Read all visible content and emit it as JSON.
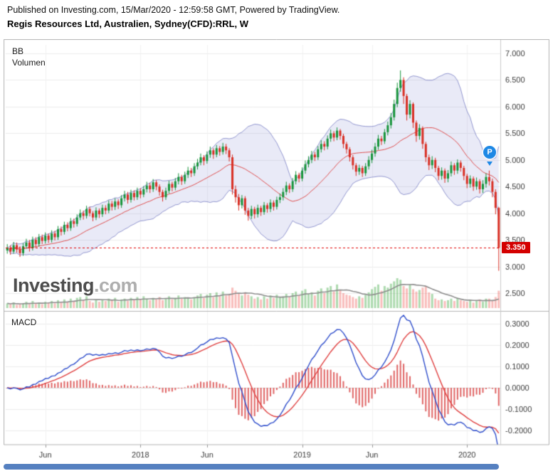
{
  "header": {
    "published_line": "Published on Investing.com, 15/Mar/2020 - 12:59:58 GMT, Powered by TradingView.",
    "title": "Regis Resources Ltd, Australien, Sydney(CFD):RRL, W"
  },
  "price_pane": {
    "indicator_labels": {
      "bb": "BB",
      "volume": "Volumen"
    },
    "watermark": {
      "name": "Investing",
      "suffix": ".com"
    },
    "last_price_tag": "3.350",
    "event_marker": "P"
  },
  "macd_pane": {
    "label": "MACD"
  },
  "axes": {
    "price_ticks": [
      {
        "v": 7.0,
        "label": "7.000"
      },
      {
        "v": 6.5,
        "label": "6.500"
      },
      {
        "v": 6.0,
        "label": "6.000"
      },
      {
        "v": 5.5,
        "label": "5.500"
      },
      {
        "v": 5.0,
        "label": "5.000"
      },
      {
        "v": 4.5,
        "label": "4.500"
      },
      {
        "v": 4.0,
        "label": "4.000"
      },
      {
        "v": 3.5,
        "label": "3.500"
      },
      {
        "v": 3.0,
        "label": "3.000"
      },
      {
        "v": 2.5,
        "label": "2.500"
      }
    ],
    "macd_ticks": [
      {
        "v": 0.3,
        "label": "0.3000"
      },
      {
        "v": 0.2,
        "label": "0.2000"
      },
      {
        "v": 0.1,
        "label": "0.1000"
      },
      {
        "v": 0.0,
        "label": "0.0000"
      },
      {
        "v": -0.1,
        "label": "-0.1000"
      },
      {
        "v": -0.2,
        "label": "-0.2000"
      }
    ],
    "time_ticks": [
      {
        "label": "Jun",
        "i": 12
      },
      {
        "label": "2018",
        "i": 42
      },
      {
        "label": "Jun",
        "i": 63
      },
      {
        "label": "2019",
        "i": 93
      },
      {
        "label": "Jun",
        "i": 115
      },
      {
        "label": "2020",
        "i": 145
      }
    ]
  },
  "colors": {
    "up": "#18953c",
    "down": "#d93025",
    "vol_up": "rgba(76,175,80,0.45)",
    "vol_down": "rgba(239,83,80,0.38)",
    "vol_ma": "#8d8d8d",
    "bb_fill": "rgba(98,103,196,0.14)",
    "bb_edge": "rgba(84,90,180,0.6)",
    "bb_mid": "#e05151",
    "macd_line": "#2f4ecc",
    "macd_signal": "#e04040",
    "macd_hist": "#e06666",
    "last_price_line": "#e00000",
    "tag_bg": "#d40000",
    "grid": "#ededed",
    "grid_zero": "#d9d9d9",
    "border": "#b3b3b3",
    "axis_text": "#3c3c3c",
    "marker": "#1e88e5",
    "scrollbar": "#5580c0"
  },
  "chart_data": [
    {
      "id": "price",
      "type": "candlestick",
      "title": "RRL weekly candles with Bollinger Bands and volume",
      "x_unit": "week",
      "ylim": [
        2.17,
        7.17
      ],
      "yticks": [
        7.0,
        6.5,
        6.0,
        5.5,
        5.0,
        4.5,
        4.0,
        3.5,
        3.0,
        2.5
      ],
      "grid": true,
      "legend": "none",
      "last_price": 3.35,
      "bollinger": {
        "period": 20,
        "mult": 2
      },
      "volume_ma_period": 10,
      "candles": [
        [
          3.3,
          3.42,
          3.24,
          3.35
        ],
        [
          3.35,
          3.4,
          3.22,
          3.28
        ],
        [
          3.28,
          3.46,
          3.24,
          3.4
        ],
        [
          3.4,
          3.45,
          3.26,
          3.32
        ],
        [
          3.32,
          3.38,
          3.18,
          3.25
        ],
        [
          3.25,
          3.44,
          3.2,
          3.38
        ],
        [
          3.38,
          3.52,
          3.33,
          3.45
        ],
        [
          3.45,
          3.5,
          3.28,
          3.35
        ],
        [
          3.35,
          3.56,
          3.3,
          3.5
        ],
        [
          3.5,
          3.55,
          3.36,
          3.42
        ],
        [
          3.42,
          3.61,
          3.37,
          3.55
        ],
        [
          3.55,
          3.6,
          3.42,
          3.48
        ],
        [
          3.48,
          3.64,
          3.43,
          3.58
        ],
        [
          3.58,
          3.62,
          3.44,
          3.5
        ],
        [
          3.5,
          3.68,
          3.45,
          3.62
        ],
        [
          3.62,
          3.67,
          3.49,
          3.55
        ],
        [
          3.55,
          3.76,
          3.5,
          3.7
        ],
        [
          3.7,
          3.75,
          3.58,
          3.65
        ],
        [
          3.65,
          3.84,
          3.6,
          3.78
        ],
        [
          3.78,
          3.83,
          3.66,
          3.72
        ],
        [
          3.72,
          3.91,
          3.67,
          3.85
        ],
        [
          3.85,
          3.9,
          3.73,
          3.8
        ],
        [
          3.8,
          3.98,
          3.75,
          3.92
        ],
        [
          3.92,
          4.07,
          3.87,
          4.0
        ],
        [
          4.0,
          4.05,
          3.88,
          3.95
        ],
        [
          3.95,
          4.14,
          3.9,
          4.08
        ],
        [
          4.08,
          4.12,
          3.94,
          4.0
        ],
        [
          4.0,
          4.04,
          3.85,
          3.92
        ],
        [
          3.92,
          4.11,
          3.87,
          4.05
        ],
        [
          4.05,
          4.09,
          3.91,
          3.98
        ],
        [
          3.98,
          4.16,
          3.93,
          4.1
        ],
        [
          4.1,
          4.15,
          3.98,
          4.05
        ],
        [
          4.05,
          4.24,
          4.0,
          4.18
        ],
        [
          4.18,
          4.23,
          4.05,
          4.12
        ],
        [
          4.12,
          4.28,
          4.06,
          4.22
        ],
        [
          4.22,
          4.26,
          4.08,
          4.15
        ],
        [
          4.15,
          4.34,
          4.1,
          4.28
        ],
        [
          4.28,
          4.42,
          4.22,
          4.35
        ],
        [
          4.35,
          4.4,
          4.18,
          4.25
        ],
        [
          4.25,
          4.44,
          4.2,
          4.38
        ],
        [
          4.38,
          4.43,
          4.24,
          4.3
        ],
        [
          4.3,
          4.48,
          4.25,
          4.42
        ],
        [
          4.42,
          4.47,
          4.28,
          4.35
        ],
        [
          4.35,
          4.51,
          4.3,
          4.45
        ],
        [
          4.45,
          4.59,
          4.39,
          4.52
        ],
        [
          4.52,
          4.57,
          4.38,
          4.45
        ],
        [
          4.45,
          4.64,
          4.4,
          4.58
        ],
        [
          4.58,
          4.62,
          4.43,
          4.5
        ],
        [
          4.5,
          4.54,
          4.33,
          4.4
        ],
        [
          4.4,
          4.44,
          4.22,
          4.3
        ],
        [
          4.3,
          4.48,
          4.25,
          4.42
        ],
        [
          4.42,
          4.61,
          4.37,
          4.55
        ],
        [
          4.55,
          4.59,
          4.41,
          4.48
        ],
        [
          4.48,
          4.66,
          4.43,
          4.6
        ],
        [
          4.6,
          4.75,
          4.54,
          4.68
        ],
        [
          4.68,
          4.72,
          4.53,
          4.6
        ],
        [
          4.6,
          4.78,
          4.55,
          4.72
        ],
        [
          4.72,
          4.87,
          4.66,
          4.8
        ],
        [
          4.8,
          4.85,
          4.68,
          4.75
        ],
        [
          4.75,
          4.94,
          4.7,
          4.88
        ],
        [
          4.88,
          5.02,
          4.82,
          4.95
        ],
        [
          4.95,
          5.12,
          4.9,
          5.05
        ],
        [
          5.05,
          5.09,
          4.9,
          4.98
        ],
        [
          4.98,
          5.16,
          4.93,
          5.1
        ],
        [
          5.1,
          5.25,
          5.04,
          5.18
        ],
        [
          5.18,
          5.22,
          5.02,
          5.1
        ],
        [
          5.1,
          5.28,
          5.05,
          5.22
        ],
        [
          5.22,
          5.26,
          5.08,
          5.15
        ],
        [
          5.15,
          5.32,
          5.1,
          5.25
        ],
        [
          5.25,
          5.3,
          5.11,
          5.18
        ],
        [
          5.18,
          5.22,
          4.97,
          5.05
        ],
        [
          5.05,
          5.1,
          4.35,
          4.45
        ],
        [
          4.45,
          4.52,
          4.2,
          4.3
        ],
        [
          4.3,
          4.36,
          4.05,
          4.15
        ],
        [
          4.15,
          4.34,
          4.09,
          4.28
        ],
        [
          4.28,
          4.32,
          3.97,
          4.05
        ],
        [
          4.05,
          4.1,
          3.86,
          3.95
        ],
        [
          3.95,
          4.14,
          3.89,
          4.08
        ],
        [
          4.08,
          4.12,
          3.9,
          3.98
        ],
        [
          3.98,
          4.16,
          3.92,
          4.1
        ],
        [
          4.1,
          4.14,
          3.95,
          4.02
        ],
        [
          4.02,
          4.21,
          3.97,
          4.15
        ],
        [
          4.15,
          4.19,
          4.01,
          4.08
        ],
        [
          4.08,
          4.26,
          4.02,
          4.2
        ],
        [
          4.2,
          4.24,
          4.05,
          4.12
        ],
        [
          4.12,
          4.31,
          4.07,
          4.25
        ],
        [
          4.25,
          4.37,
          4.19,
          4.3
        ],
        [
          4.3,
          4.47,
          4.24,
          4.4
        ],
        [
          4.4,
          4.59,
          4.34,
          4.52
        ],
        [
          4.52,
          4.56,
          4.38,
          4.45
        ],
        [
          4.45,
          4.66,
          4.4,
          4.6
        ],
        [
          4.6,
          4.79,
          4.54,
          4.72
        ],
        [
          4.72,
          4.76,
          4.58,
          4.65
        ],
        [
          4.65,
          4.86,
          4.6,
          4.8
        ],
        [
          4.8,
          4.99,
          4.74,
          4.92
        ],
        [
          4.92,
          5.07,
          4.86,
          5.0
        ],
        [
          5.0,
          5.17,
          4.94,
          5.1
        ],
        [
          5.1,
          5.15,
          4.98,
          5.05
        ],
        [
          5.05,
          5.26,
          5.0,
          5.2
        ],
        [
          5.2,
          5.37,
          5.14,
          5.3
        ],
        [
          5.3,
          5.35,
          5.18,
          5.25
        ],
        [
          5.25,
          5.46,
          5.2,
          5.4
        ],
        [
          5.4,
          5.57,
          5.34,
          5.5
        ],
        [
          5.5,
          5.54,
          5.35,
          5.42
        ],
        [
          5.42,
          5.61,
          5.37,
          5.55
        ],
        [
          5.55,
          5.58,
          5.38,
          5.45
        ],
        [
          5.45,
          5.49,
          5.22,
          5.3
        ],
        [
          5.3,
          5.34,
          5.12,
          5.2
        ],
        [
          5.2,
          5.24,
          4.97,
          5.05
        ],
        [
          5.05,
          5.09,
          4.82,
          4.9
        ],
        [
          4.9,
          4.94,
          4.7,
          4.78
        ],
        [
          4.78,
          4.91,
          4.72,
          4.85
        ],
        [
          4.85,
          4.89,
          4.68,
          4.75
        ],
        [
          4.75,
          4.94,
          4.7,
          4.88
        ],
        [
          4.88,
          5.07,
          4.82,
          5.0
        ],
        [
          5.0,
          5.19,
          4.94,
          5.12
        ],
        [
          5.12,
          5.32,
          5.06,
          5.25
        ],
        [
          5.25,
          5.47,
          5.19,
          5.4
        ],
        [
          5.4,
          5.45,
          5.28,
          5.35
        ],
        [
          5.35,
          5.58,
          5.3,
          5.52
        ],
        [
          5.52,
          5.72,
          5.46,
          5.65
        ],
        [
          5.65,
          5.88,
          5.59,
          5.8
        ],
        [
          5.8,
          6.13,
          5.74,
          6.05
        ],
        [
          6.05,
          6.45,
          5.99,
          6.35
        ],
        [
          6.35,
          6.68,
          6.28,
          6.5
        ],
        [
          6.5,
          6.55,
          6.05,
          6.2
        ],
        [
          6.2,
          6.24,
          5.74,
          5.85
        ],
        [
          5.85,
          6.12,
          5.78,
          6.05
        ],
        [
          6.05,
          6.08,
          5.6,
          5.7
        ],
        [
          5.7,
          5.74,
          5.34,
          5.45
        ],
        [
          5.45,
          5.67,
          5.38,
          5.6
        ],
        [
          5.6,
          5.63,
          5.21,
          5.3
        ],
        [
          5.3,
          5.34,
          4.96,
          5.05
        ],
        [
          5.05,
          5.1,
          4.81,
          4.9
        ],
        [
          4.9,
          5.07,
          4.83,
          5.0
        ],
        [
          5.0,
          5.04,
          4.77,
          4.85
        ],
        [
          4.85,
          4.89,
          4.62,
          4.7
        ],
        [
          4.7,
          4.86,
          4.63,
          4.8
        ],
        [
          4.8,
          4.84,
          4.57,
          4.65
        ],
        [
          4.65,
          4.81,
          4.58,
          4.75
        ],
        [
          4.75,
          4.97,
          4.69,
          4.9
        ],
        [
          4.9,
          4.94,
          4.72,
          4.8
        ],
        [
          4.8,
          5.01,
          4.74,
          4.95
        ],
        [
          4.95,
          4.99,
          4.78,
          4.85
        ],
        [
          4.85,
          4.89,
          4.62,
          4.7
        ],
        [
          4.7,
          4.74,
          4.47,
          4.55
        ],
        [
          4.55,
          4.71,
          4.48,
          4.65
        ],
        [
          4.65,
          4.69,
          4.42,
          4.5
        ],
        [
          4.5,
          4.67,
          4.44,
          4.6
        ],
        [
          4.6,
          4.64,
          4.37,
          4.45
        ],
        [
          4.45,
          4.62,
          4.38,
          4.55
        ],
        [
          4.55,
          4.75,
          4.48,
          4.68
        ],
        [
          4.68,
          4.8,
          4.52,
          4.6
        ],
        [
          4.6,
          4.65,
          4.3,
          4.4
        ],
        [
          4.4,
          4.45,
          3.98,
          4.1
        ],
        [
          4.1,
          4.12,
          2.92,
          3.35
        ]
      ],
      "volumes": [
        6,
        5,
        7,
        4,
        5,
        6,
        8,
        5,
        9,
        6,
        7,
        5,
        8,
        7,
        9,
        6,
        10,
        7,
        11,
        8,
        12,
        9,
        13,
        14,
        10,
        15,
        9,
        7,
        10,
        8,
        11,
        9,
        12,
        10,
        13,
        8,
        11,
        12,
        9,
        13,
        10,
        14,
        11,
        15,
        12,
        10,
        13,
        11,
        14,
        10,
        12,
        15,
        11,
        13,
        16,
        12,
        14,
        13,
        11,
        14,
        16,
        18,
        13,
        17,
        19,
        14,
        20,
        15,
        21,
        16,
        18,
        26,
        22,
        19,
        16,
        20,
        17,
        15,
        12,
        14,
        11,
        15,
        12,
        16,
        13,
        17,
        14,
        15,
        18,
        14,
        19,
        21,
        16,
        22,
        24,
        18,
        20,
        16,
        22,
        25,
        19,
        26,
        28,
        21,
        30,
        23,
        19,
        17,
        16,
        14,
        12,
        15,
        13,
        17,
        20,
        24,
        27,
        30,
        22,
        28,
        26,
        31,
        34,
        38,
        36,
        28,
        25,
        30,
        24,
        21,
        23,
        26,
        28,
        20,
        18,
        12,
        10,
        11,
        9,
        10,
        12,
        9,
        13,
        10,
        9,
        8,
        10,
        7,
        9,
        11,
        8,
        12,
        12,
        10,
        14,
        22
      ]
    },
    {
      "id": "macd",
      "type": "line",
      "title": "MACD",
      "params": {
        "fast": 12,
        "slow": 26,
        "signal": 9
      },
      "ylim": [
        -0.27,
        0.33
      ],
      "yticks": [
        0.3,
        0.2,
        0.1,
        0.0,
        -0.1,
        -0.2
      ],
      "grid": true
    }
  ]
}
